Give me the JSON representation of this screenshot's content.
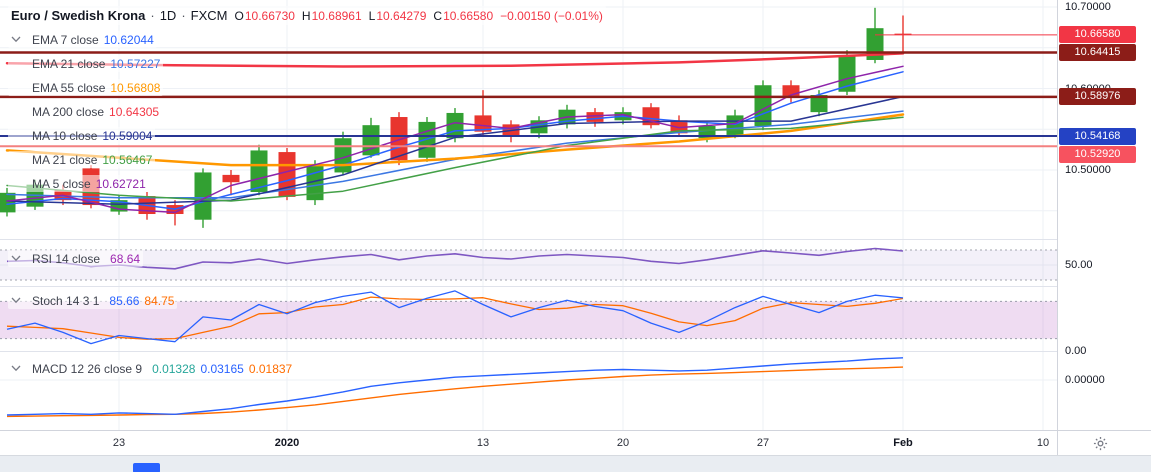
{
  "chart": {
    "symbol_row": {
      "title": "Euro / Swedish Krona",
      "separator": "·",
      "timeframe": "1D",
      "exchange": "FXCM",
      "ohlc": [
        {
          "label": "O",
          "value": "10.66730"
        },
        {
          "label": "H",
          "value": "10.68961"
        },
        {
          "label": "L",
          "value": "10.64279"
        },
        {
          "label": "C",
          "value": "10.66580"
        }
      ],
      "ohlc_value_color": "#f23645",
      "change": "−0.00150 (−0.01%)",
      "change_color": "#f23645"
    },
    "icons": {
      "legend_collapse": "chevron-down",
      "axis_settings": "gear"
    }
  },
  "chart_data": {
    "type": "candlestick+indicators",
    "symbol": "Euro / Swedish Krona",
    "timeframe": "1D",
    "exchange": "FXCM",
    "theme": {
      "background": "#ffffff",
      "grid": "#eef1f6",
      "up_color": "#32a032",
      "down_color": "#e8352e",
      "accent_blue": "#2962ff"
    },
    "candles": [
      [
        10.448,
        10.478,
        10.443,
        10.472
      ],
      [
        10.455,
        10.488,
        10.451,
        10.482
      ],
      [
        10.475,
        10.482,
        10.457,
        10.463
      ],
      [
        10.502,
        10.506,
        10.453,
        10.457
      ],
      [
        10.449,
        10.469,
        10.445,
        10.463
      ],
      [
        10.468,
        10.473,
        10.439,
        10.446
      ],
      [
        10.457,
        10.463,
        10.432,
        10.446
      ],
      [
        10.439,
        10.502,
        10.429,
        10.497
      ],
      [
        10.494,
        10.5,
        10.469,
        10.485
      ],
      [
        10.473,
        10.531,
        10.469,
        10.524
      ],
      [
        10.522,
        10.527,
        10.463,
        10.467
      ],
      [
        10.463,
        10.512,
        10.457,
        10.506
      ],
      [
        10.497,
        10.547,
        10.494,
        10.539
      ],
      [
        10.518,
        10.564,
        10.515,
        10.555
      ],
      [
        10.565,
        10.571,
        10.506,
        10.512
      ],
      [
        10.515,
        10.565,
        10.51,
        10.559
      ],
      [
        10.539,
        10.576,
        10.534,
        10.57
      ],
      [
        10.567,
        10.598,
        10.542,
        10.547
      ],
      [
        10.556,
        10.561,
        10.534,
        10.542
      ],
      [
        10.545,
        10.566,
        10.539,
        10.561
      ],
      [
        10.556,
        10.58,
        10.551,
        10.574
      ],
      [
        10.571,
        10.576,
        10.553,
        10.559
      ],
      [
        10.561,
        10.577,
        10.556,
        10.571
      ],
      [
        10.577,
        10.582,
        10.551,
        10.555
      ],
      [
        10.561,
        10.567,
        10.542,
        10.545
      ],
      [
        10.539,
        10.559,
        10.534,
        10.554
      ],
      [
        10.543,
        10.574,
        10.539,
        10.567
      ],
      [
        10.554,
        10.61,
        10.549,
        10.604
      ],
      [
        10.604,
        10.61,
        10.583,
        10.591
      ],
      [
        10.571,
        10.598,
        10.566,
        10.592
      ],
      [
        10.596,
        10.647,
        10.592,
        10.641
      ],
      [
        10.635,
        10.699,
        10.631,
        10.674
      ],
      [
        10.6673,
        10.68961,
        10.64279,
        10.6658
      ]
    ],
    "overlays": [
      {
        "label": "EMA 7 close",
        "value": "10.62044",
        "value_color": "#2962ff",
        "line_color": "#2962ff",
        "width": 1.5,
        "points": [
          [
            0,
            10.458
          ],
          [
            2,
            10.465
          ],
          [
            4,
            10.461
          ],
          [
            6,
            10.452
          ],
          [
            8,
            10.47
          ],
          [
            10,
            10.487
          ],
          [
            12,
            10.506
          ],
          [
            14,
            10.528
          ],
          [
            16,
            10.548
          ],
          [
            18,
            10.551
          ],
          [
            20,
            10.56
          ],
          [
            22,
            10.566
          ],
          [
            24,
            10.56
          ],
          [
            26,
            10.556
          ],
          [
            28,
            10.582
          ],
          [
            30,
            10.603
          ],
          [
            32,
            10.62044
          ]
        ]
      },
      {
        "label": "EMA 21 close",
        "value": "10.57227",
        "value_color": "#3b77e3",
        "line_color": "#3b77e3",
        "width": 1.5,
        "points": [
          [
            0,
            10.47
          ],
          [
            4,
            10.466
          ],
          [
            8,
            10.466
          ],
          [
            12,
            10.486
          ],
          [
            16,
            10.513
          ],
          [
            20,
            10.533
          ],
          [
            24,
            10.546
          ],
          [
            28,
            10.556
          ],
          [
            32,
            10.57227
          ]
        ]
      },
      {
        "label": "EMA 55 close",
        "value": "10.56808",
        "value_color": "#ff9800",
        "line_color": "#ff9800",
        "width": 2.5,
        "points": [
          [
            0,
            10.524
          ],
          [
            4,
            10.515
          ],
          [
            8,
            10.506
          ],
          [
            12,
            10.506
          ],
          [
            16,
            10.514
          ],
          [
            20,
            10.525
          ],
          [
            24,
            10.535
          ],
          [
            28,
            10.548
          ],
          [
            32,
            10.56808
          ]
        ]
      },
      {
        "label": "MA 200 close",
        "value": "10.64305",
        "value_color": "#f23645",
        "line_color": "#f23645",
        "width": 2.5,
        "points": [
          [
            0,
            10.631
          ],
          [
            6,
            10.6285
          ],
          [
            12,
            10.627
          ],
          [
            18,
            10.628
          ],
          [
            24,
            10.632
          ],
          [
            28,
            10.637
          ],
          [
            32,
            10.64305
          ]
        ]
      },
      {
        "label": "MA 10 close",
        "value": "10.59004",
        "value_color": "#283593",
        "line_color": "#283593",
        "width": 1.5,
        "points": [
          [
            0,
            10.462
          ],
          [
            4,
            10.458
          ],
          [
            8,
            10.463
          ],
          [
            12,
            10.494
          ],
          [
            16,
            10.54
          ],
          [
            20,
            10.557
          ],
          [
            24,
            10.56
          ],
          [
            28,
            10.56
          ],
          [
            32,
            10.59004
          ]
        ]
      },
      {
        "label": "MA 21 close",
        "value": "10.56467",
        "value_color": "#43a047",
        "line_color": "#43a047",
        "width": 1.5,
        "points": [
          [
            0,
            10.481
          ],
          [
            4,
            10.469
          ],
          [
            8,
            10.462
          ],
          [
            12,
            10.474
          ],
          [
            16,
            10.503
          ],
          [
            20,
            10.53
          ],
          [
            24,
            10.548
          ],
          [
            28,
            10.551
          ],
          [
            32,
            10.56467
          ]
        ]
      },
      {
        "label": "MA 5 close",
        "value": "10.62721",
        "value_color": "#8e24aa",
        "line_color": "#8e24aa",
        "width": 1.5,
        "points": [
          [
            0,
            10.462
          ],
          [
            2,
            10.469
          ],
          [
            4,
            10.452
          ],
          [
            6,
            10.448
          ],
          [
            8,
            10.481
          ],
          [
            10,
            10.498
          ],
          [
            12,
            10.515
          ],
          [
            14,
            10.537
          ],
          [
            16,
            10.558
          ],
          [
            18,
            10.551
          ],
          [
            20,
            10.565
          ],
          [
            22,
            10.568
          ],
          [
            24,
            10.552
          ],
          [
            26,
            10.557
          ],
          [
            28,
            10.592
          ],
          [
            30,
            10.612
          ],
          [
            32,
            10.62721
          ]
        ]
      }
    ],
    "hlines": [
      {
        "price": 10.64415,
        "color": "#8c1d18",
        "width": 2.5
      },
      {
        "price": 10.58976,
        "color": "#8c1d18",
        "width": 2.5
      },
      {
        "price": 10.54168,
        "color": "#283593",
        "width": 2
      },
      {
        "price": 10.5292,
        "color": "#f38080",
        "width": 2
      }
    ],
    "last_price_line": {
      "price": 10.6658,
      "color": "#f23645"
    },
    "rsi": {
      "label": "RSI 14 close",
      "value": "68.64",
      "value_color": "#9c27b0",
      "line_color": "#7e57c2",
      "band": [
        30,
        70
      ],
      "axis_label": "50.00",
      "values": [
        55,
        56,
        53,
        48,
        50,
        47,
        45,
        54,
        53,
        58,
        52,
        57,
        61,
        64,
        57,
        62,
        65,
        60,
        58,
        62,
        64,
        62,
        60,
        55,
        52,
        57,
        63,
        69,
        66,
        63,
        68,
        72,
        68.64
      ]
    },
    "stoch": {
      "label": "Stoch 14 3 1",
      "legend_values": [
        {
          "v": "85.66",
          "color": "#2962ff"
        },
        {
          "v": "84.75",
          "color": "#ff6d00"
        }
      ],
      "k_color": "#2962ff",
      "d_color": "#ff6d00",
      "band": [
        20,
        80
      ],
      "axis_label": "0.00",
      "k": [
        35,
        45,
        30,
        12,
        25,
        20,
        15,
        55,
        50,
        75,
        60,
        78,
        88,
        95,
        70,
        85,
        97,
        75,
        55,
        70,
        82,
        72,
        65,
        45,
        30,
        48,
        70,
        88,
        75,
        62,
        80,
        90,
        85.66
      ],
      "d": [
        40,
        38,
        36,
        29,
        22,
        19,
        20,
        30,
        40,
        60,
        62,
        71,
        75,
        87,
        84,
        83,
        84,
        86,
        76,
        67,
        69,
        75,
        73,
        61,
        47,
        41,
        49,
        69,
        78,
        75,
        72,
        77,
        84.75
      ]
    },
    "macd": {
      "label": "MACD 12 26 close 9",
      "legend_values": [
        {
          "v": "0.01328",
          "color": "#26a69a"
        },
        {
          "v": "0.03165",
          "color": "#2962ff"
        },
        {
          "v": "0.01837",
          "color": "#ff6d00"
        }
      ],
      "macd_color": "#2962ff",
      "signal_color": "#ff6d00",
      "axis_label": "0.00000",
      "macd": [
        -0.05,
        -0.049,
        -0.048,
        -0.049,
        -0.047,
        -0.048,
        -0.049,
        -0.045,
        -0.041,
        -0.035,
        -0.03,
        -0.024,
        -0.017,
        -0.009,
        -0.004,
        0.0,
        0.004,
        0.006,
        0.008,
        0.01,
        0.012,
        0.014,
        0.015,
        0.014,
        0.013,
        0.014,
        0.017,
        0.02,
        0.023,
        0.025,
        0.027,
        0.03,
        0.03165
      ],
      "signal": [
        -0.052,
        -0.0515,
        -0.051,
        -0.0505,
        -0.05,
        -0.0495,
        -0.049,
        -0.0478,
        -0.0458,
        -0.0428,
        -0.0395,
        -0.0355,
        -0.0305,
        -0.0255,
        -0.0205,
        -0.0165,
        -0.0125,
        -0.009,
        -0.006,
        -0.003,
        0.0,
        0.0025,
        0.005,
        0.007,
        0.0085,
        0.0095,
        0.0105,
        0.012,
        0.0135,
        0.015,
        0.016,
        0.017,
        0.01837
      ]
    },
    "time_axis": {
      "labels": [
        {
          "text": "23",
          "bar": 4,
          "bold": false
        },
        {
          "text": "2020",
          "bar": 10,
          "bold": true
        },
        {
          "text": "13",
          "bar": 17,
          "bold": false
        },
        {
          "text": "20",
          "bar": 22,
          "bold": false
        },
        {
          "text": "27",
          "bar": 27,
          "bold": false
        },
        {
          "text": "Feb",
          "bar": 32,
          "bold": true
        },
        {
          "text": "10",
          "bar": 37,
          "bold": false
        }
      ]
    },
    "price_axis": {
      "labels": [
        {
          "text": "10.70000",
          "price": 10.7
        },
        {
          "text": "10.60000",
          "price": 10.6
        },
        {
          "text": "10.50000",
          "price": 10.5
        }
      ],
      "badges": [
        {
          "text": "10.66580",
          "price": 10.6658,
          "color": "#f23645"
        },
        {
          "text": "10.64415",
          "price": 10.64415,
          "color": "#8c1d18"
        },
        {
          "text": "10.58976",
          "price": 10.58976,
          "color": "#8c1d18"
        },
        {
          "text": "10.54168",
          "price": 10.54168,
          "color": "#2442c4"
        },
        {
          "text": "10.52920",
          "price": 10.5292,
          "color": "#f7525f"
        }
      ]
    }
  }
}
